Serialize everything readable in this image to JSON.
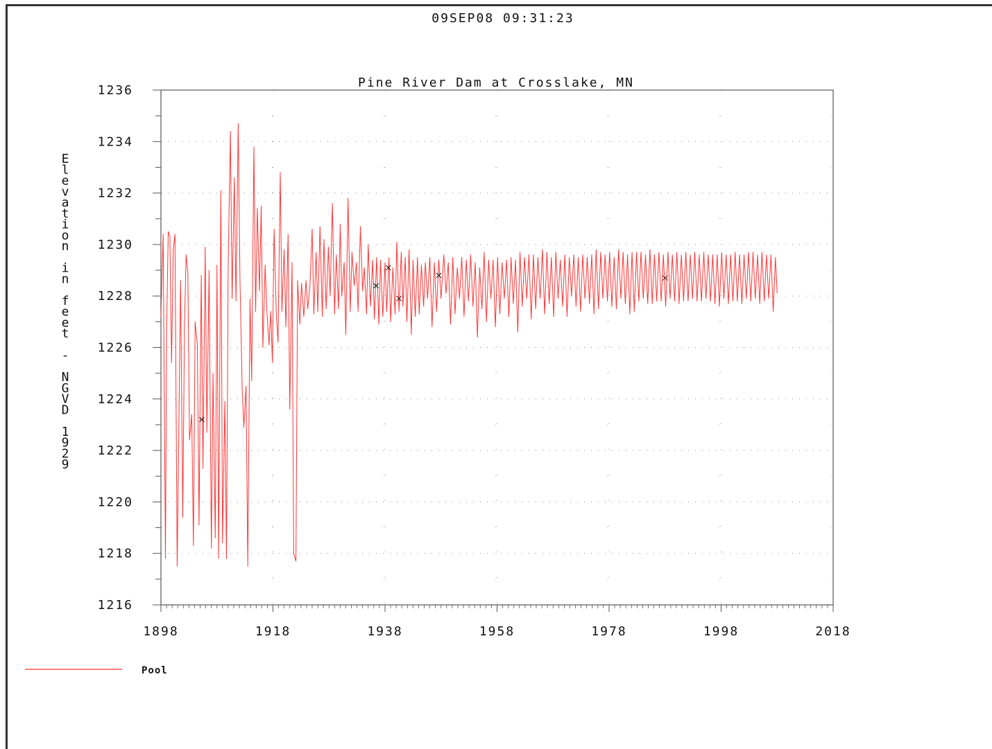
{
  "header": {
    "timestamp": "09SEP08   09:31:23"
  },
  "chart_data": {
    "type": "line",
    "title": "Pine River Dam at Crosslake, MN",
    "xlabel": "",
    "ylabel": "Elevation in feet - NGVD 1929",
    "xlim": [
      1898,
      2018
    ],
    "ylim": [
      1216,
      1236
    ],
    "x_ticks": [
      "1898",
      "1918",
      "1938",
      "1958",
      "1978",
      "1998",
      "2018"
    ],
    "y_ticks": [
      "1216",
      "1218",
      "1220",
      "1222",
      "1224",
      "1226",
      "1228",
      "1230",
      "1232",
      "1234",
      "1236"
    ],
    "grid": true,
    "legend_position": "bottom-left",
    "colors": {
      "series": "#ff3333",
      "marker": "#111111",
      "axis": "#555555"
    },
    "series": [
      {
        "name": "Pool",
        "x": [
          1898.0,
          1898.4,
          1898.8,
          1899.0,
          1899.3,
          1899.6,
          1899.9,
          1900.2,
          1900.5,
          1900.9,
          1901.2,
          1901.5,
          1901.9,
          1902.2,
          1902.5,
          1902.8,
          1903.1,
          1903.5,
          1903.8,
          1904.1,
          1904.5,
          1904.8,
          1905.2,
          1905.5,
          1905.9,
          1906.2,
          1906.6,
          1907.0,
          1907.3,
          1907.7,
          1908.0,
          1908.3,
          1908.7,
          1909.0,
          1909.4,
          1909.7,
          1910.0,
          1910.4,
          1910.7,
          1911.1,
          1911.4,
          1911.8,
          1912.1,
          1912.5,
          1912.8,
          1913.2,
          1913.5,
          1913.9,
          1914.2,
          1914.6,
          1914.9,
          1915.2,
          1915.6,
          1915.9,
          1916.2,
          1916.6,
          1916.9,
          1917.3,
          1917.6,
          1917.9,
          1918.2,
          1918.6,
          1918.9,
          1919.3,
          1919.6,
          1920.0,
          1920.3,
          1920.7,
          1921.0,
          1921.4,
          1921.7,
          1922.1,
          1922.4,
          1922.8,
          1923.1,
          1923.5,
          1923.9,
          1924.2,
          1924.6,
          1925.0,
          1925.3,
          1925.7,
          1926.0,
          1926.4,
          1926.8,
          1927.1,
          1927.5,
          1927.9,
          1928.2,
          1928.6,
          1929.0,
          1929.3,
          1929.7,
          1930.0,
          1930.3,
          1930.7,
          1931.0,
          1931.4,
          1931.8,
          1932.1,
          1932.5,
          1932.9,
          1933.2,
          1933.6,
          1934.0,
          1934.3,
          1934.7,
          1935.0,
          1935.4,
          1935.8,
          1936.1,
          1936.5,
          1936.9,
          1937.2,
          1937.6,
          1938.0,
          1938.3,
          1938.7,
          1939.0,
          1939.4,
          1939.8,
          1940.1,
          1940.5,
          1940.9,
          1941.2,
          1941.6,
          1941.9,
          1942.3,
          1942.7,
          1943.0,
          1943.4,
          1943.8,
          1944.1,
          1944.5,
          1944.9,
          1945.2,
          1945.6,
          1946.0,
          1946.4,
          1946.8,
          1947.2,
          1947.6,
          1948.0,
          1948.5,
          1948.9,
          1949.3,
          1949.7,
          1950.1,
          1950.5,
          1950.9,
          1951.3,
          1951.7,
          1952.1,
          1952.5,
          1952.9,
          1953.3,
          1953.7,
          1954.1,
          1954.5,
          1954.9,
          1955.3,
          1955.7,
          1956.1,
          1956.5,
          1956.9,
          1957.3,
          1957.7,
          1958.1,
          1958.5,
          1958.9,
          1959.3,
          1959.7,
          1960.1,
          1960.5,
          1960.9,
          1961.3,
          1961.7,
          1962.1,
          1962.5,
          1962.9,
          1963.3,
          1963.7,
          1964.1,
          1964.5,
          1964.9,
          1965.3,
          1965.7,
          1966.1,
          1966.5,
          1966.9,
          1967.3,
          1967.7,
          1968.1,
          1968.5,
          1968.9,
          1969.3,
          1969.7,
          1970.1,
          1970.5,
          1970.9,
          1971.3,
          1971.7,
          1972.1,
          1972.5,
          1972.9,
          1973.3,
          1973.7,
          1974.1,
          1974.5,
          1974.9,
          1975.3,
          1975.7,
          1976.1,
          1976.5,
          1976.9,
          1977.3,
          1977.7,
          1978.1,
          1978.5,
          1978.9,
          1979.3,
          1979.7,
          1980.1,
          1980.5,
          1980.9,
          1981.3,
          1981.7,
          1982.1,
          1982.5,
          1982.9,
          1983.3,
          1983.7,
          1984.1,
          1984.5,
          1984.9,
          1985.3,
          1985.7,
          1986.1,
          1986.5,
          1986.9,
          1987.3,
          1987.7,
          1988.1,
          1988.5,
          1988.9,
          1989.3,
          1989.7,
          1990.1,
          1990.5,
          1990.9,
          1991.3,
          1991.7,
          1992.1,
          1992.5,
          1992.9,
          1993.3,
          1993.7,
          1994.1,
          1994.5,
          1994.9,
          1995.3,
          1995.7,
          1996.1,
          1996.5,
          1996.9,
          1997.3,
          1997.7,
          1998.1,
          1998.5,
          1998.9,
          1999.3,
          1999.7,
          2000.1,
          2000.5,
          2000.9,
          2001.3,
          2001.7,
          2002.1,
          2002.5,
          2002.9,
          2003.3,
          2003.7,
          2004.1,
          2004.5,
          2004.9,
          2005.3,
          2005.7,
          2006.1,
          2006.5,
          2006.9,
          2007.3,
          2007.7,
          2008.0
        ],
        "y": [
          1227.2,
          1230.4,
          1217.8,
          1226.5,
          1230.5,
          1230.3,
          1225.4,
          1229.8,
          1230.4,
          1217.5,
          1222.8,
          1228.6,
          1219.4,
          1226.8,
          1229.6,
          1228.9,
          1222.4,
          1223.4,
          1218.3,
          1227.0,
          1226.1,
          1219.1,
          1228.8,
          1221.3,
          1229.9,
          1222.7,
          1229.0,
          1218.2,
          1225.0,
          1218.6,
          1229.2,
          1217.8,
          1232.1,
          1218.4,
          1223.9,
          1217.8,
          1229.1,
          1234.4,
          1227.9,
          1232.6,
          1227.8,
          1234.7,
          1228.7,
          1224.4,
          1222.9,
          1224.5,
          1217.5,
          1227.9,
          1224.7,
          1233.8,
          1227.4,
          1231.4,
          1228.2,
          1231.5,
          1226.0,
          1229.2,
          1227.5,
          1226.1,
          1227.4,
          1225.4,
          1230.6,
          1227.3,
          1226.2,
          1232.8,
          1227.4,
          1229.8,
          1226.8,
          1230.4,
          1223.6,
          1229.3,
          1218.0,
          1217.7,
          1228.6,
          1226.9,
          1228.5,
          1227.2,
          1228.6,
          1227.5,
          1228.4,
          1230.6,
          1227.3,
          1229.7,
          1227.4,
          1230.7,
          1227.2,
          1230.2,
          1227.5,
          1229.9,
          1228.0,
          1231.6,
          1227.3,
          1229.6,
          1227.5,
          1230.8,
          1228.0,
          1229.3,
          1226.5,
          1231.8,
          1227.4,
          1229.7,
          1228.4,
          1229.3,
          1227.4,
          1230.7,
          1228.2,
          1229.1,
          1227.3,
          1230.0,
          1227.6,
          1229.4,
          1227.1,
          1229.5,
          1226.9,
          1229.4,
          1227.2,
          1229.3,
          1227.4,
          1229.5,
          1227.0,
          1229.1,
          1227.3,
          1230.1,
          1227.4,
          1229.7,
          1227.6,
          1229.5,
          1227.0,
          1229.8,
          1226.5,
          1229.4,
          1227.2,
          1229.5,
          1227.3,
          1229.2,
          1227.6,
          1229.3,
          1227.9,
          1229.5,
          1226.8,
          1229.3,
          1227.4,
          1229.4,
          1227.9,
          1229.6,
          1228.1,
          1229.3,
          1226.9,
          1229.5,
          1227.3,
          1229.1,
          1227.9,
          1229.5,
          1227.2,
          1229.4,
          1227.8,
          1229.6,
          1227.6,
          1229.3,
          1226.4,
          1229.1,
          1227.5,
          1229.7,
          1227.0,
          1229.4,
          1227.9,
          1229.4,
          1226.8,
          1229.5,
          1227.3,
          1229.3,
          1227.9,
          1229.4,
          1227.2,
          1229.5,
          1227.7,
          1229.4,
          1226.6,
          1229.7,
          1227.6,
          1229.5,
          1227.9,
          1229.6,
          1227.1,
          1229.6,
          1227.5,
          1229.5,
          1227.9,
          1229.8,
          1227.3,
          1229.7,
          1227.7,
          1229.5,
          1227.2,
          1229.7,
          1227.9,
          1229.4,
          1227.6,
          1229.6,
          1227.2,
          1229.5,
          1228.0,
          1229.6,
          1227.6,
          1229.5,
          1227.4,
          1229.6,
          1227.9,
          1229.5,
          1227.7,
          1229.6,
          1227.3,
          1229.8,
          1227.5,
          1229.7,
          1227.9,
          1229.6,
          1227.8,
          1229.7,
          1227.6,
          1229.5,
          1227.5,
          1229.8,
          1227.9,
          1229.7,
          1227.7,
          1229.6,
          1227.3,
          1229.7,
          1227.4,
          1229.7,
          1227.8,
          1229.7,
          1227.9,
          1229.6,
          1227.7,
          1229.8,
          1227.7,
          1229.6,
          1227.8,
          1229.7,
          1227.8,
          1229.6,
          1227.6,
          1229.7,
          1227.9,
          1229.6,
          1227.8,
          1229.7,
          1227.7,
          1229.6,
          1227.8,
          1229.7,
          1227.8,
          1229.6,
          1227.9,
          1229.7,
          1227.8,
          1229.6,
          1227.8,
          1229.7,
          1227.9,
          1229.6,
          1227.8,
          1229.6,
          1227.7,
          1229.6,
          1227.6,
          1229.7,
          1227.9,
          1229.6,
          1227.7,
          1229.6,
          1227.8,
          1229.7,
          1227.8,
          1229.6,
          1227.7,
          1229.6,
          1227.9,
          1229.7,
          1227.8,
          1229.7,
          1227.9,
          1229.6,
          1227.7,
          1229.7,
          1227.8,
          1229.6,
          1227.9,
          1229.6,
          1227.4,
          1229.5,
          1228.1
        ]
      },
      {
        "name": "",
        "type": "scatter",
        "marker": "x",
        "x": [
          1905.3,
          1936.4,
          1938.6,
          1940.5,
          1947.6,
          1988.0
        ],
        "y": [
          1223.2,
          1228.4,
          1229.1,
          1227.9,
          1228.8,
          1228.7
        ]
      }
    ]
  }
}
